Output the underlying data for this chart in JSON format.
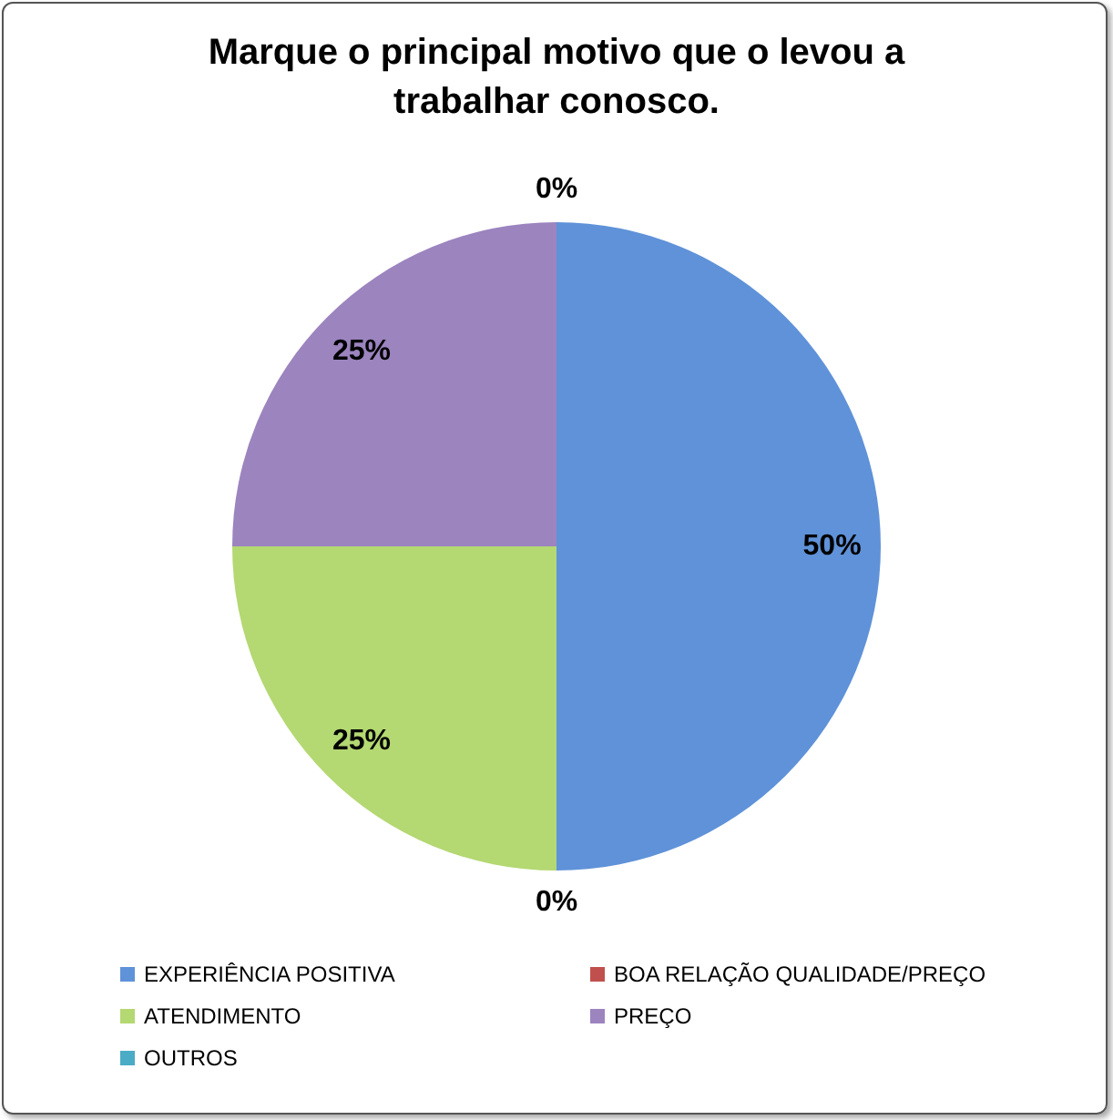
{
  "chart_data": {
    "type": "pie",
    "title": "Marque o principal motivo que o levou a trabalhar conosco.",
    "categories": [
      "EXPERIÊNCIA POSITIVA",
      "BOA RELAÇÃO QUALIDADE/PREÇO",
      "ATENDIMENTO",
      "PREÇO",
      "OUTROS"
    ],
    "values": [
      50,
      0,
      25,
      25,
      0
    ],
    "colors": [
      "#5f92d8",
      "#c0504d",
      "#b4d872",
      "#9c84bf",
      "#4bacc6"
    ],
    "value_labels": [
      "50%",
      "0%",
      "25%",
      "25%",
      "0%"
    ],
    "legend": "bottom"
  }
}
